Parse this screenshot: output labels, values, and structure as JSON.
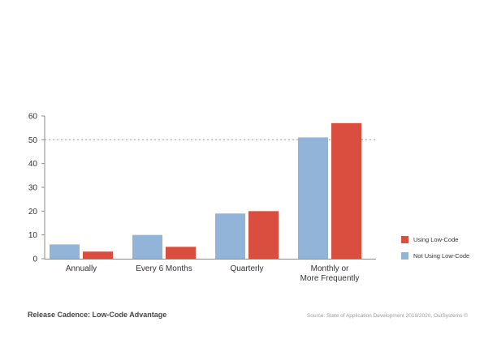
{
  "chart_data": {
    "type": "bar",
    "categories": [
      "Annually",
      "Every 6 Months",
      "Quarterly",
      "Monthly or More Frequently"
    ],
    "category_lines": [
      [
        "Annually"
      ],
      [
        "Every 6 Months"
      ],
      [
        "Quarterly"
      ],
      [
        "Monthly or",
        "More Frequently"
      ]
    ],
    "series": [
      {
        "name": "Not Using Low-Code",
        "values": [
          6,
          10,
          19,
          51
        ],
        "color": "#92b4d8"
      },
      {
        "name": "Using Low-Code",
        "values": [
          3,
          5,
          20,
          57
        ],
        "color": "#d94e3f"
      }
    ],
    "ylim": [
      0,
      60
    ],
    "yticks": [
      0,
      10,
      20,
      30,
      40,
      50,
      60
    ],
    "reference_line": 50,
    "grid": false,
    "legend_position": "right",
    "legend_order": [
      "Using Low-Code",
      "Not Using Low-Code"
    ]
  },
  "caption": "Release Cadence: Low-Code Advantage",
  "source": "Source: State of Application Development 2019/2020, OutSystems ©"
}
